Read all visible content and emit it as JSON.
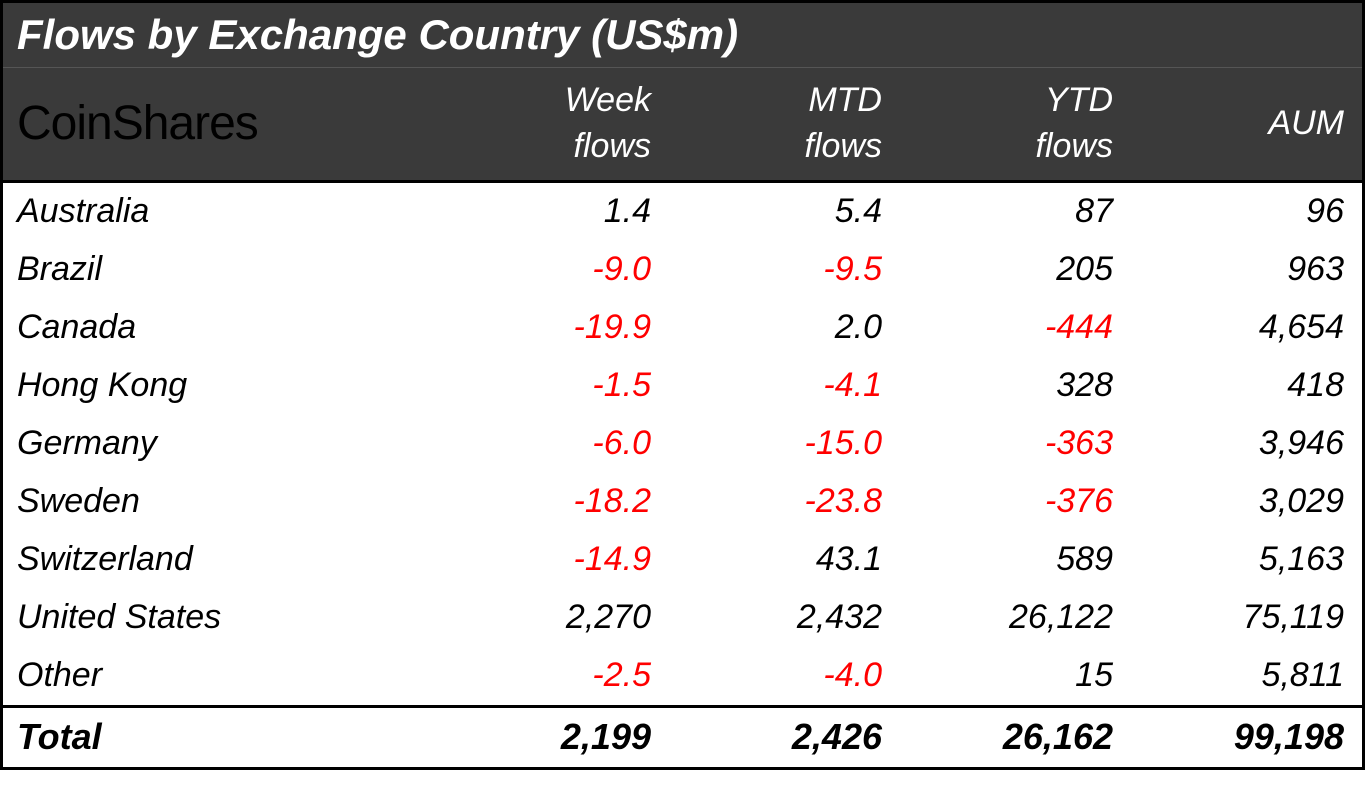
{
  "table": {
    "type": "table",
    "title": "Flows by Exchange Country (US$m)",
    "logo_text": "CoinShares",
    "background_color": "#ffffff",
    "header_background": "#3a3a3a",
    "header_text_color": "#ffffff",
    "body_text_color": "#000000",
    "negative_color": "#ff0000",
    "border_color": "#000000",
    "title_fontsize": 42,
    "header_fontsize": 34,
    "body_fontsize": 34,
    "total_fontsize": 36,
    "font_style": "italic",
    "logo_fontsize": 48,
    "logo_color": "#000000",
    "columns": [
      {
        "label_line1": "Week",
        "label_line2": "flows"
      },
      {
        "label_line1": "MTD",
        "label_line2": "flows"
      },
      {
        "label_line1": "YTD",
        "label_line2": "flows"
      },
      {
        "label_line1": "",
        "label_line2": "AUM"
      }
    ],
    "rows": [
      {
        "label": "Australia",
        "week": "1.4",
        "week_neg": false,
        "mtd": "5.4",
        "mtd_neg": false,
        "ytd": "87",
        "ytd_neg": false,
        "aum": "96"
      },
      {
        "label": "Brazil",
        "week": "-9.0",
        "week_neg": true,
        "mtd": "-9.5",
        "mtd_neg": true,
        "ytd": "205",
        "ytd_neg": false,
        "aum": "963"
      },
      {
        "label": "Canada",
        "week": "-19.9",
        "week_neg": true,
        "mtd": "2.0",
        "mtd_neg": false,
        "ytd": "-444",
        "ytd_neg": true,
        "aum": "4,654"
      },
      {
        "label": "Hong Kong",
        "week": "-1.5",
        "week_neg": true,
        "mtd": "-4.1",
        "mtd_neg": true,
        "ytd": "328",
        "ytd_neg": false,
        "aum": "418"
      },
      {
        "label": "Germany",
        "week": "-6.0",
        "week_neg": true,
        "mtd": "-15.0",
        "mtd_neg": true,
        "ytd": "-363",
        "ytd_neg": true,
        "aum": "3,946"
      },
      {
        "label": "Sweden",
        "week": "-18.2",
        "week_neg": true,
        "mtd": "-23.8",
        "mtd_neg": true,
        "ytd": "-376",
        "ytd_neg": true,
        "aum": "3,029"
      },
      {
        "label": "Switzerland",
        "week": "-14.9",
        "week_neg": true,
        "mtd": "43.1",
        "mtd_neg": false,
        "ytd": "589",
        "ytd_neg": false,
        "aum": "5,163"
      },
      {
        "label": "United States",
        "week": "2,270",
        "week_neg": false,
        "mtd": "2,432",
        "mtd_neg": false,
        "ytd": "26,122",
        "ytd_neg": false,
        "aum": "75,119"
      },
      {
        "label": "Other",
        "week": "-2.5",
        "week_neg": true,
        "mtd": "-4.0",
        "mtd_neg": true,
        "ytd": "15",
        "ytd_neg": false,
        "aum": "5,811"
      }
    ],
    "total": {
      "label": "Total",
      "week": "2,199",
      "mtd": "2,426",
      "ytd": "26,162",
      "aum": "99,198"
    }
  }
}
